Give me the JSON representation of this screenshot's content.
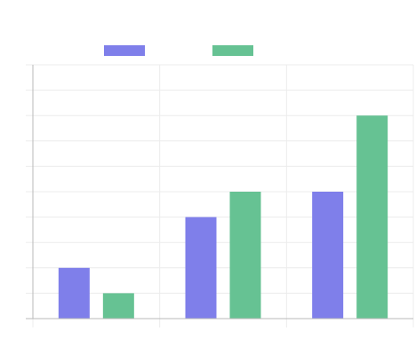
{
  "chart_data": {
    "type": "bar",
    "categories": [
      "",
      "",
      ""
    ],
    "series": [
      {
        "values": [
          2,
          4,
          5
        ],
        "color": "#7f7fea"
      },
      {
        "values": [
          1,
          5,
          8
        ],
        "color": "#66c293"
      }
    ],
    "ylim": [
      0,
      10
    ],
    "grid": true,
    "legend": "top-left",
    "axis_color": "#b9b9b9",
    "grid_color": "#ececec"
  }
}
